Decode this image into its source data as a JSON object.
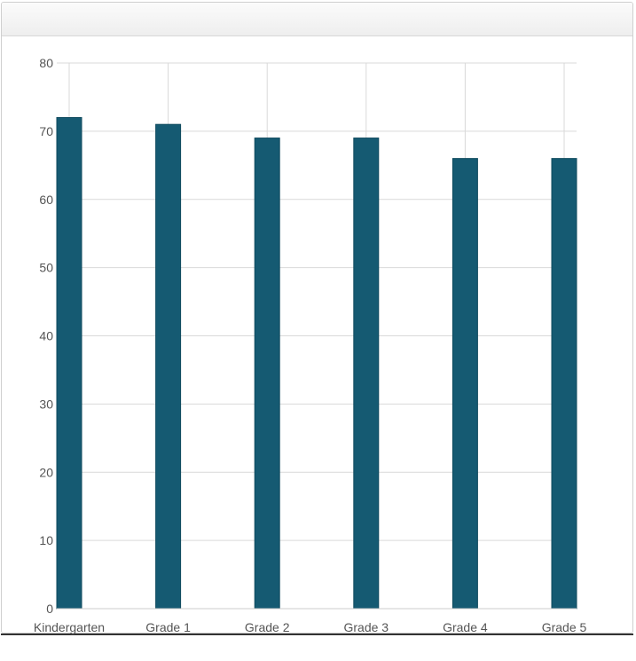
{
  "chart_data": {
    "type": "bar",
    "categories": [
      "Kindergarten",
      "Grade 1",
      "Grade 2",
      "Grade 3",
      "Grade 4",
      "Grade 5"
    ],
    "values": [
      72,
      71,
      69,
      69,
      66,
      66
    ],
    "ylim": [
      0,
      80
    ],
    "yticks": [
      0,
      10,
      20,
      30,
      40,
      50,
      60,
      70,
      80
    ],
    "grid": true,
    "title": "",
    "xlabel": "",
    "ylabel": "",
    "colors": {
      "bar": "#155a72",
      "grid": "#d9d9d9",
      "axis": "#cccccc"
    }
  }
}
